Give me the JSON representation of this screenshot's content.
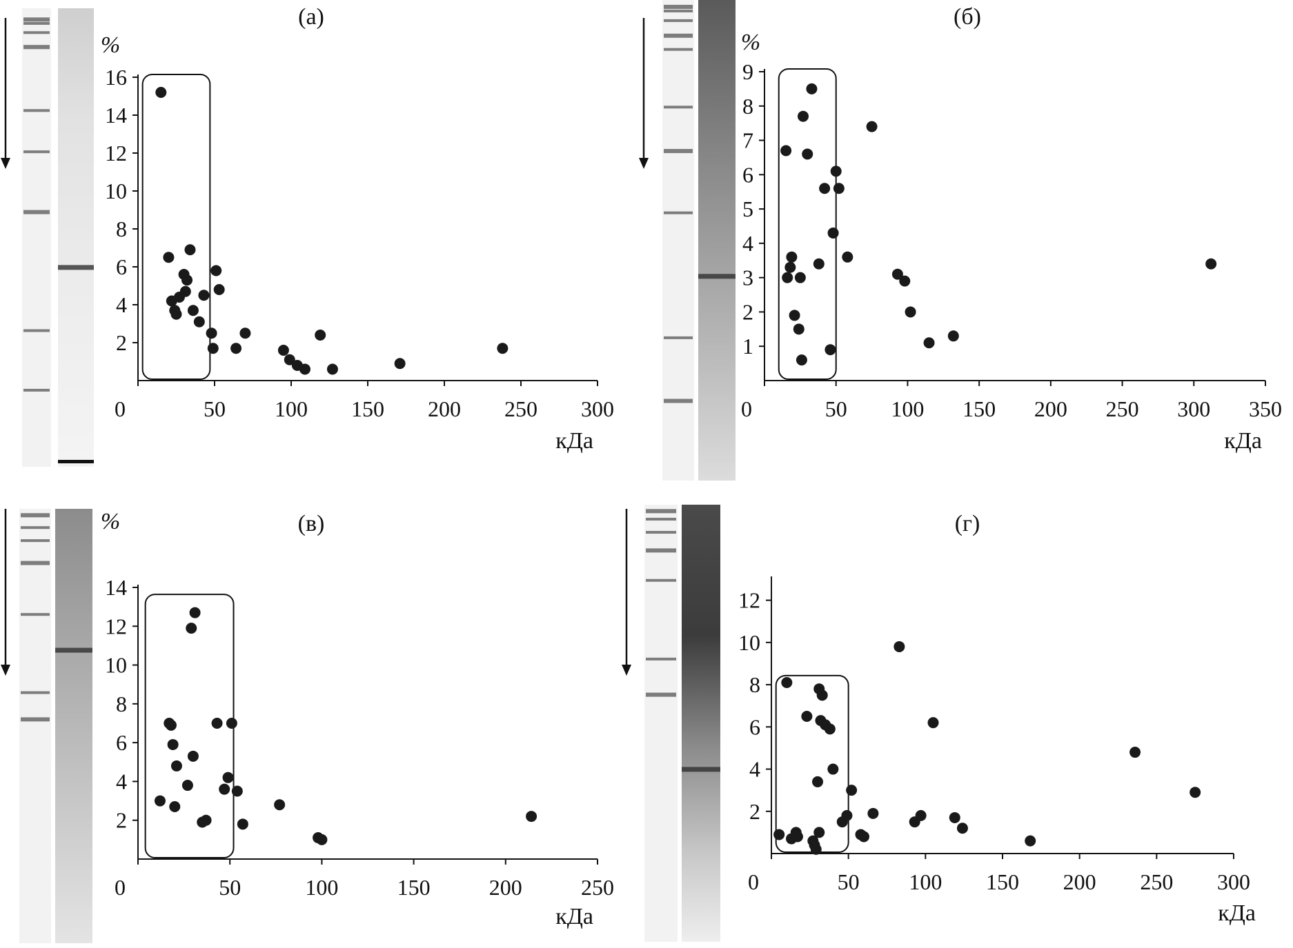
{
  "figure": {
    "panels": [
      {
        "label": "(а)",
        "ylabel": "%",
        "xlabel": "кДа"
      },
      {
        "label": "(б)",
        "ylabel": "%",
        "xlabel": "кДа"
      },
      {
        "label": "(в)",
        "ylabel": "%",
        "xlabel": "кДа"
      },
      {
        "label": "(г)",
        "ylabel": "",
        "xlabel": "кДа"
      }
    ]
  },
  "colors": {
    "points": "#1a1a1a",
    "axes": "#111111",
    "gel_light": "#f3f3f3",
    "gel_band": "#3a3a3a"
  },
  "chart_data": [
    {
      "type": "scatter",
      "title": "(а)",
      "xlabel": "кДа",
      "ylabel": "%",
      "xlim": [
        0,
        300
      ],
      "ylim": [
        0,
        16
      ],
      "xticks": [
        0,
        50,
        100,
        150,
        200,
        250,
        300
      ],
      "yticks": [
        2,
        4,
        6,
        8,
        10,
        12,
        14,
        16
      ],
      "highlight_x": [
        3,
        47
      ],
      "highlight_y": [
        0,
        16
      ],
      "points": [
        [
          15,
          15.2
        ],
        [
          20,
          6.5
        ],
        [
          22,
          4.2
        ],
        [
          24,
          3.7
        ],
        [
          25,
          3.5
        ],
        [
          27,
          4.4
        ],
        [
          30,
          5.6
        ],
        [
          31,
          4.7
        ],
        [
          32,
          5.3
        ],
        [
          34,
          6.9
        ],
        [
          36,
          3.7
        ],
        [
          40,
          3.1
        ],
        [
          43,
          4.5
        ],
        [
          48,
          2.5
        ],
        [
          49,
          1.7
        ],
        [
          51,
          5.8
        ],
        [
          53,
          4.8
        ],
        [
          64,
          1.7
        ],
        [
          70,
          2.5
        ],
        [
          95,
          1.6
        ],
        [
          99,
          1.1
        ],
        [
          104,
          0.8
        ],
        [
          109,
          0.6
        ],
        [
          119,
          2.4
        ],
        [
          127,
          0.6
        ],
        [
          171,
          0.9
        ],
        [
          238,
          1.7
        ]
      ]
    },
    {
      "type": "scatter",
      "title": "(б)",
      "xlabel": "кДа",
      "ylabel": "%",
      "xlim": [
        0,
        350
      ],
      "ylim": [
        0,
        9
      ],
      "xticks": [
        0,
        50,
        100,
        150,
        200,
        250,
        300,
        350
      ],
      "yticks": [
        1,
        2,
        3,
        4,
        5,
        6,
        7,
        8,
        9
      ],
      "highlight_x": [
        10,
        50
      ],
      "highlight_y": [
        0,
        9
      ],
      "points": [
        [
          15,
          6.7
        ],
        [
          16,
          3.0
        ],
        [
          18,
          3.3
        ],
        [
          19,
          3.6
        ],
        [
          21,
          1.9
        ],
        [
          24,
          1.5
        ],
        [
          25,
          3.0
        ],
        [
          26,
          0.6
        ],
        [
          27,
          7.7
        ],
        [
          30,
          6.6
        ],
        [
          33,
          8.5
        ],
        [
          38,
          3.4
        ],
        [
          42,
          5.6
        ],
        [
          46,
          0.9
        ],
        [
          48,
          4.3
        ],
        [
          50,
          6.1
        ],
        [
          52,
          5.6
        ],
        [
          58,
          3.6
        ],
        [
          75,
          7.4
        ],
        [
          93,
          3.1
        ],
        [
          98,
          2.9
        ],
        [
          102,
          2.0
        ],
        [
          115,
          1.1
        ],
        [
          132,
          1.3
        ],
        [
          312,
          3.4
        ]
      ]
    },
    {
      "type": "scatter",
      "title": "(в)",
      "xlabel": "кДа",
      "ylabel": "%",
      "xlim": [
        0,
        250
      ],
      "ylim": [
        0,
        14
      ],
      "xticks": [
        0,
        50,
        100,
        150,
        200,
        250
      ],
      "yticks": [
        2,
        4,
        6,
        8,
        10,
        12,
        14
      ],
      "highlight_x": [
        4,
        52
      ],
      "highlight_y": [
        0,
        13.5
      ],
      "points": [
        [
          12,
          3.0
        ],
        [
          17,
          7.0
        ],
        [
          18,
          6.9
        ],
        [
          19,
          5.9
        ],
        [
          20,
          2.7
        ],
        [
          21,
          4.8
        ],
        [
          27,
          3.8
        ],
        [
          29,
          11.9
        ],
        [
          30,
          5.3
        ],
        [
          31,
          12.7
        ],
        [
          35,
          1.9
        ],
        [
          37,
          2.0
        ],
        [
          43,
          7.0
        ],
        [
          47,
          3.6
        ],
        [
          49,
          4.2
        ],
        [
          51,
          7.0
        ],
        [
          54,
          3.5
        ],
        [
          57,
          1.8
        ],
        [
          77,
          2.8
        ],
        [
          98,
          1.1
        ],
        [
          100,
          1.0
        ],
        [
          214,
          2.2
        ]
      ]
    },
    {
      "type": "scatter",
      "title": "(г)",
      "xlabel": "кДа",
      "ylabel": "",
      "xlim": [
        0,
        300
      ],
      "ylim": [
        0,
        13
      ],
      "xticks": [
        0,
        50,
        100,
        150,
        200,
        250,
        300
      ],
      "yticks": [
        2,
        4,
        6,
        8,
        10,
        12
      ],
      "highlight_x": [
        3,
        50
      ],
      "highlight_y": [
        0,
        8.3
      ],
      "points": [
        [
          5,
          0.9
        ],
        [
          10,
          8.1
        ],
        [
          13,
          0.7
        ],
        [
          16,
          1.0
        ],
        [
          17,
          0.8
        ],
        [
          23,
          6.5
        ],
        [
          27,
          0.6
        ],
        [
          28,
          0.4
        ],
        [
          29,
          0.2
        ],
        [
          30,
          3.4
        ],
        [
          31,
          7.8
        ],
        [
          31,
          1.0
        ],
        [
          32,
          6.3
        ],
        [
          33,
          7.5
        ],
        [
          35,
          6.1
        ],
        [
          38,
          5.9
        ],
        [
          40,
          4.0
        ],
        [
          46,
          1.5
        ],
        [
          49,
          1.8
        ],
        [
          52,
          3.0
        ],
        [
          58,
          0.9
        ],
        [
          60,
          0.8
        ],
        [
          66,
          1.9
        ],
        [
          83,
          9.8
        ],
        [
          93,
          1.5
        ],
        [
          97,
          1.8
        ],
        [
          105,
          6.2
        ],
        [
          119,
          1.7
        ],
        [
          124,
          1.2
        ],
        [
          168,
          0.6
        ],
        [
          236,
          4.8
        ],
        [
          275,
          2.9
        ]
      ]
    }
  ]
}
